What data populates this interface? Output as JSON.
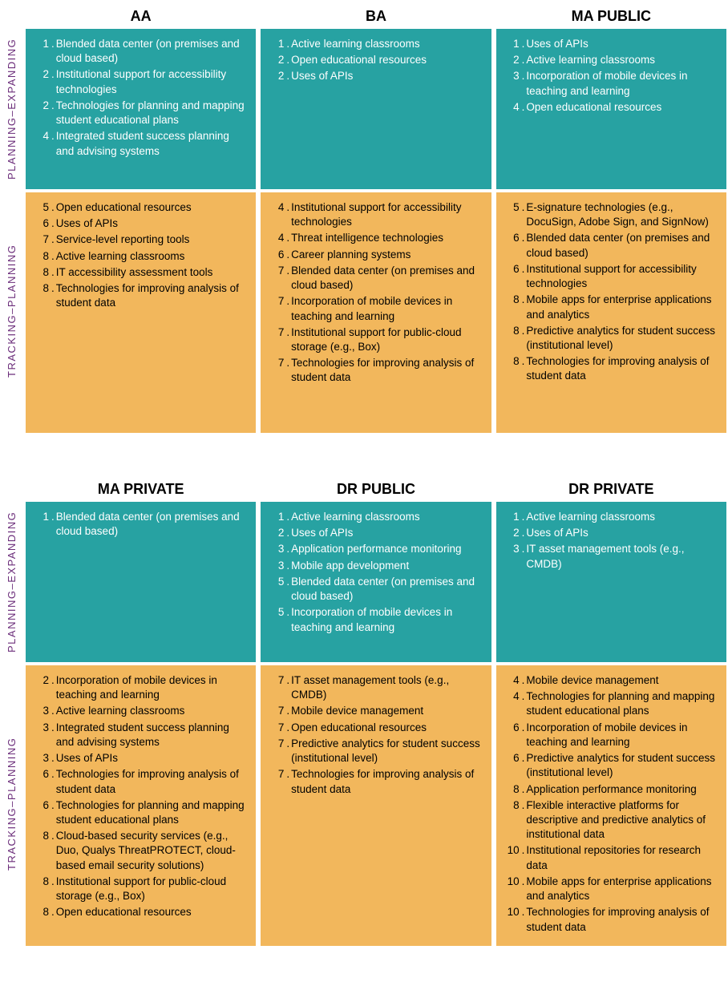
{
  "colors": {
    "planning_bg": "#27a2a2",
    "tracking_bg": "#f2b75c",
    "planning_text": "#ffffff",
    "tracking_text": "#000000",
    "side_label_color": "#6b2d7a",
    "header_color": "#000000",
    "page_bg": "#ffffff"
  },
  "typography": {
    "header_fontsize": 18,
    "cell_fontsize": 13.5,
    "side_label_fontsize": 13
  },
  "heights": {
    "section1_planning": 200,
    "section1_tracking": 300,
    "section2_planning": 200,
    "section2_tracking": 350
  },
  "side_labels": {
    "planning": "PLANNING–EXPANDING",
    "tracking": "TRACKING–PLANNING"
  },
  "sections": [
    {
      "columns": [
        {
          "header": "AA",
          "planning": [
            {
              "n": "1",
              "t": "Blended data center (on premises and cloud based)"
            },
            {
              "n": "2",
              "t": "Institutional support for accessibility technologies"
            },
            {
              "n": "2",
              "t": "Technologies for planning and mapping student educational plans"
            },
            {
              "n": "4",
              "t": "Integrated student success planning and advising systems"
            }
          ],
          "tracking": [
            {
              "n": "5",
              "t": "Open educational resources"
            },
            {
              "n": "6",
              "t": "Uses of APIs"
            },
            {
              "n": "7",
              "t": "Service-level reporting tools"
            },
            {
              "n": "8",
              "t": "Active learning classrooms"
            },
            {
              "n": "8",
              "t": "IT accessibility assessment tools"
            },
            {
              "n": "8",
              "t": "Technologies for improving analysis of student data"
            }
          ]
        },
        {
          "header": "BA",
          "planning": [
            {
              "n": "1",
              "t": "Active learning classrooms"
            },
            {
              "n": "2",
              "t": "Open educational resources"
            },
            {
              "n": "2",
              "t": "Uses of APIs"
            }
          ],
          "tracking": [
            {
              "n": "4",
              "t": "Institutional support for accessibility technologies"
            },
            {
              "n": "4",
              "t": "Threat intelligence technologies"
            },
            {
              "n": "6",
              "t": "Career planning systems"
            },
            {
              "n": "7",
              "t": "Blended data center (on premises and cloud based)"
            },
            {
              "n": "7",
              "t": "Incorporation of mobile devices in teaching and learning"
            },
            {
              "n": "7",
              "t": "Institutional support for public-cloud storage (e.g., Box)"
            },
            {
              "n": "7",
              "t": "Technologies for improving analysis of student data"
            }
          ]
        },
        {
          "header": "MA PUBLIC",
          "planning": [
            {
              "n": "1",
              "t": "Uses of APIs"
            },
            {
              "n": "2",
              "t": "Active learning classrooms"
            },
            {
              "n": "3",
              "t": "Incorporation of mobile devices in teaching and learning"
            },
            {
              "n": "4",
              "t": "Open educational resources"
            }
          ],
          "tracking": [
            {
              "n": "5",
              "t": "E-signature technologies (e.g., DocuSign, Adobe Sign, and SignNow)"
            },
            {
              "n": "6",
              "t": "Blended data center (on premises and cloud based)"
            },
            {
              "n": "6",
              "t": "Institutional support for accessibility technologies"
            },
            {
              "n": "8",
              "t": "Mobile apps for enterprise applications and analytics"
            },
            {
              "n": "8",
              "t": "Predictive analytics for student success (institutional level)"
            },
            {
              "n": "8",
              "t": "Technologies for improving analysis of student data"
            }
          ]
        }
      ]
    },
    {
      "columns": [
        {
          "header": "MA PRIVATE",
          "planning": [
            {
              "n": "1",
              "t": "Blended data center (on premises and cloud based)"
            }
          ],
          "tracking": [
            {
              "n": "2",
              "t": "Incorporation of mobile devices in teaching and learning"
            },
            {
              "n": "3",
              "t": "Active learning classrooms"
            },
            {
              "n": "3",
              "t": "Integrated student success planning and advising systems"
            },
            {
              "n": "3",
              "t": "Uses of APIs"
            },
            {
              "n": "6",
              "t": "Technologies for improving analysis of student data"
            },
            {
              "n": "6",
              "t": "Technologies for planning and mapping student educational plans"
            },
            {
              "n": "8",
              "t": "Cloud-based security services (e.g., Duo, Qualys ThreatPROTECT, cloud-based email security solutions)"
            },
            {
              "n": "8",
              "t": "Institutional support for public-cloud storage (e.g., Box)"
            },
            {
              "n": "8",
              "t": "Open educational resources"
            }
          ]
        },
        {
          "header": "DR PUBLIC",
          "planning": [
            {
              "n": "1",
              "t": "Active learning classrooms"
            },
            {
              "n": "2",
              "t": "Uses of APIs"
            },
            {
              "n": "3",
              "t": "Application performance monitoring"
            },
            {
              "n": "3",
              "t": "Mobile app development"
            },
            {
              "n": "5",
              "t": "Blended data center (on premises and cloud based)"
            },
            {
              "n": "5",
              "t": "Incorporation of mobile devices in teaching and learning"
            }
          ],
          "tracking": [
            {
              "n": "7",
              "t": "IT asset management tools (e.g., CMDB)"
            },
            {
              "n": "7",
              "t": "Mobile device management"
            },
            {
              "n": "7",
              "t": "Open educational resources"
            },
            {
              "n": "7",
              "t": "Predictive analytics for student success (institutional level)"
            },
            {
              "n": "7",
              "t": "Technologies for improving analysis of student data"
            }
          ]
        },
        {
          "header": "DR PRIVATE",
          "planning": [
            {
              "n": "1",
              "t": "Active learning classrooms"
            },
            {
              "n": "2",
              "t": "Uses of APIs"
            },
            {
              "n": "3",
              "t": "IT asset management tools (e.g., CMDB)"
            }
          ],
          "tracking": [
            {
              "n": "4",
              "t": "Mobile device management"
            },
            {
              "n": "4",
              "t": "Technologies for planning and mapping student educational plans"
            },
            {
              "n": "6",
              "t": "Incorporation of mobile devices in teaching and learning"
            },
            {
              "n": "6",
              "t": "Predictive analytics for student success (institutional level)"
            },
            {
              "n": "8",
              "t": "Application performance monitoring"
            },
            {
              "n": "8",
              "t": "Flexible interactive platforms for descriptive and predictive analytics of institutional data"
            },
            {
              "n": "10",
              "t": "Institutional repositories for research data"
            },
            {
              "n": "10",
              "t": "Mobile apps for enterprise applications and analytics"
            },
            {
              "n": "10",
              "t": "Technologies for improving analysis of student data"
            }
          ]
        }
      ]
    }
  ]
}
